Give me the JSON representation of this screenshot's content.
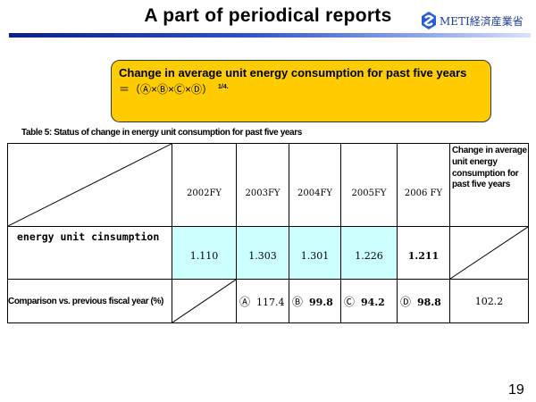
{
  "slide": {
    "title": "A part of periodical reports",
    "logo_text": "METI経済産業省",
    "page_number": "19"
  },
  "formula_box": {
    "line1": "Change in average unit energy consumption for past five years",
    "line2": "＝（Ⓐ×Ⓑ×Ⓒ×Ⓓ）",
    "exponent": "1/4."
  },
  "table": {
    "caption": "Table 5: Status of change in energy unit consumption for past five years",
    "headers": [
      "2002FY",
      "2003FY",
      "2004FY",
      "2005FY",
      "2006 FY",
      "Change in average unit energy consumption for past five years"
    ],
    "row1": {
      "label": "energy unit cinsumption",
      "values": [
        "1.110",
        "1.303",
        "1.301",
        "1.226",
        "1.211"
      ]
    },
    "row2": {
      "label": "Comparison vs. previous fiscal year (%)",
      "items": [
        {
          "mark": "Ⓐ",
          "value": "117.4"
        },
        {
          "mark": "Ⓑ",
          "value": "99.8"
        },
        {
          "mark": "Ⓒ",
          "value": "94.2"
        },
        {
          "mark": "Ⓓ",
          "value": "98.8"
        }
      ],
      "average_change": "102.2"
    }
  },
  "colors": {
    "formula_box": "#ffcc00",
    "value_cell": "#ccffff",
    "rule_start": "#0b1f8a",
    "logo_text": "#1f3f8f"
  }
}
